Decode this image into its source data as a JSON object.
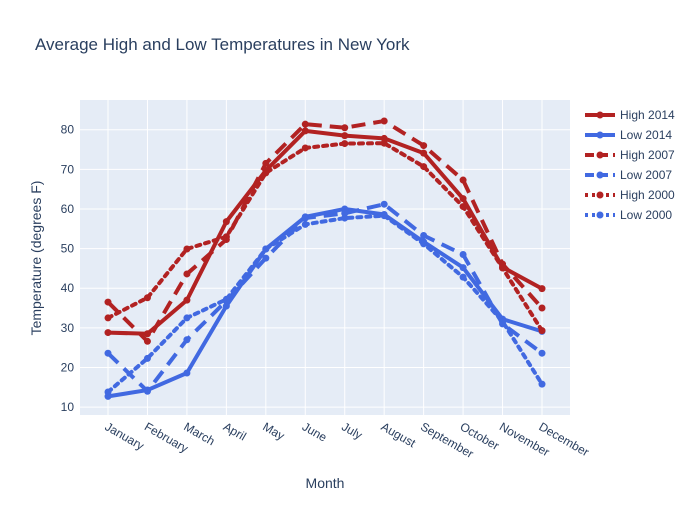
{
  "chart_data": {
    "type": "line",
    "title": "Average High and Low Temperatures in New York",
    "xlabel": "Month",
    "ylabel": "Temperature (degrees F)",
    "categories": [
      "January",
      "February",
      "March",
      "April",
      "May",
      "June",
      "July",
      "August",
      "September",
      "October",
      "November",
      "December"
    ],
    "ylim": [
      8,
      87.5
    ],
    "yticks": [
      10,
      20,
      30,
      40,
      50,
      60,
      70,
      80
    ],
    "grid": true,
    "legend_position": "top-right",
    "series": [
      {
        "name": "High 2014",
        "color": "#b22222",
        "dash": "solid",
        "values": [
          28.8,
          28.5,
          37.0,
          56.8,
          69.7,
          79.7,
          78.5,
          77.8,
          74.1,
          62.6,
          45.3,
          39.9
        ]
      },
      {
        "name": "Low 2014",
        "color": "#4169e1",
        "dash": "solid",
        "values": [
          12.7,
          14.3,
          18.6,
          35.5,
          49.9,
          58.0,
          60.0,
          58.6,
          51.7,
          45.2,
          32.2,
          29.1
        ]
      },
      {
        "name": "High 2007",
        "color": "#b22222",
        "dash": "dash",
        "values": [
          36.5,
          26.6,
          43.6,
          52.3,
          71.5,
          81.4,
          80.5,
          82.2,
          76.0,
          67.3,
          46.1,
          35.0
        ]
      },
      {
        "name": "Low 2007",
        "color": "#4169e1",
        "dash": "dash",
        "values": [
          23.6,
          14.0,
          27.0,
          36.8,
          47.6,
          57.7,
          58.9,
          61.2,
          53.3,
          48.5,
          31.0,
          23.6
        ]
      },
      {
        "name": "High 2000",
        "color": "#b22222",
        "dash": "dot",
        "values": [
          32.5,
          37.6,
          49.9,
          53.0,
          69.1,
          75.4,
          76.5,
          76.6,
          70.7,
          60.6,
          45.1,
          29.3
        ]
      },
      {
        "name": "Low 2000",
        "color": "#4169e1",
        "dash": "dot",
        "values": [
          13.8,
          22.3,
          32.5,
          37.2,
          49.9,
          56.1,
          57.7,
          58.3,
          51.2,
          42.8,
          31.6,
          15.8
        ]
      }
    ]
  }
}
